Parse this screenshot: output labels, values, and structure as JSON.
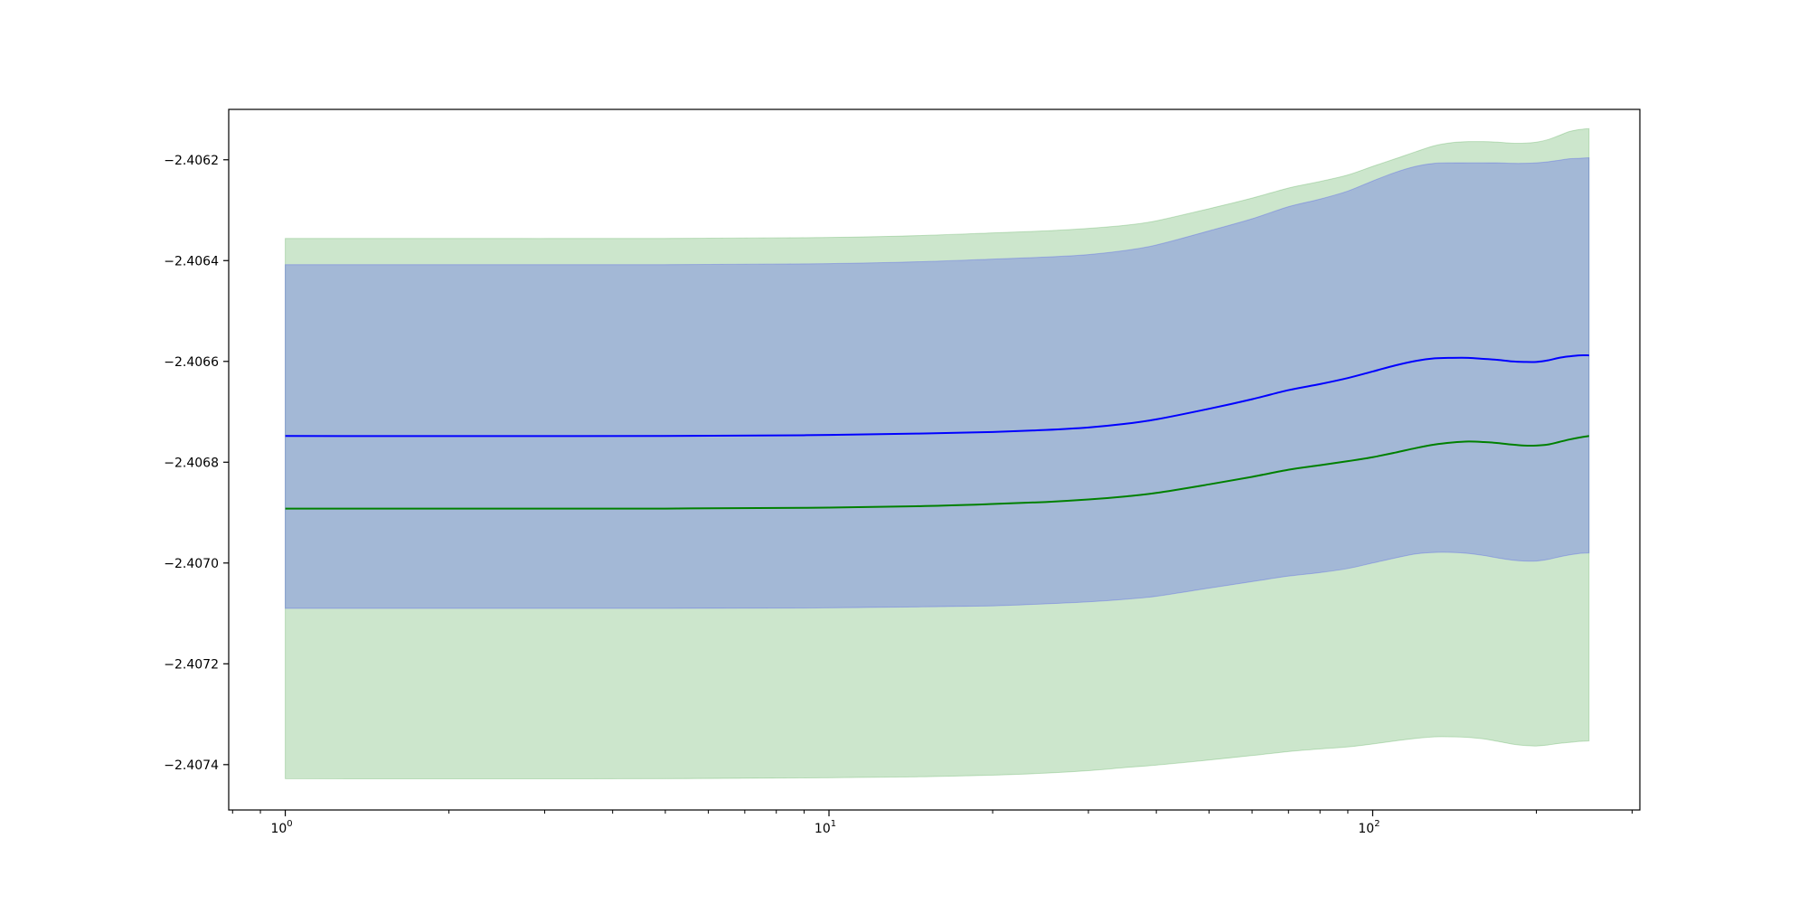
{
  "chart_data": {
    "type": "area",
    "title": "",
    "xlabel": "",
    "ylabel": "",
    "xscale": "log",
    "xlim": [
      0.787,
      310
    ],
    "ylim": [
      -2.40749,
      -2.4061
    ],
    "grid": false,
    "legend": null,
    "x_ticks": [
      {
        "value": 1,
        "base": "10",
        "exp": "0"
      },
      {
        "value": 10,
        "base": "10",
        "exp": "1"
      },
      {
        "value": 100,
        "base": "10",
        "exp": "2"
      }
    ],
    "x_minor_ticks": [
      0.8,
      0.9,
      2,
      3,
      4,
      5,
      6,
      7,
      8,
      9,
      20,
      30,
      40,
      50,
      60,
      70,
      80,
      90,
      200,
      300
    ],
    "y_ticks": [
      {
        "value": -2.4062,
        "label": "−2.4062"
      },
      {
        "value": -2.4064,
        "label": "−2.4064"
      },
      {
        "value": -2.4066,
        "label": "−2.4066"
      },
      {
        "value": -2.4068,
        "label": "−2.4068"
      },
      {
        "value": -2.407,
        "label": "−2.4070"
      },
      {
        "value": -2.4072,
        "label": "−2.4072"
      },
      {
        "value": -2.4074,
        "label": "−2.4074"
      }
    ],
    "series": [
      {
        "color": "#008000",
        "band_color": "#008000",
        "band_opacity": 0.2,
        "x": [
          1,
          5,
          10,
          15,
          20,
          25,
          30,
          35,
          40,
          50,
          60,
          70,
          80,
          90,
          100,
          110,
          120,
          130,
          140,
          150,
          160,
          170,
          180,
          190,
          200,
          210,
          220,
          230,
          240,
          250
        ],
        "y": [
          -2.406892,
          -2.406892,
          -2.40689,
          -2.406887,
          -2.406883,
          -2.406879,
          -2.406874,
          -2.406868,
          -2.406861,
          -2.406844,
          -2.406829,
          -2.406815,
          -2.406806,
          -2.406798,
          -2.40679,
          -2.406781,
          -2.406772,
          -2.406765,
          -2.406761,
          -2.406759,
          -2.40676,
          -2.406762,
          -2.406765,
          -2.406767,
          -2.406767,
          -2.406765,
          -2.40676,
          -2.406755,
          -2.406751,
          -2.406748
        ],
        "lower": [
          -2.407428,
          -2.407428,
          -2.407426,
          -2.407424,
          -2.407421,
          -2.407417,
          -2.407412,
          -2.407406,
          -2.407401,
          -2.407391,
          -2.407382,
          -2.407374,
          -2.407369,
          -2.407365,
          -2.407359,
          -2.407353,
          -2.407348,
          -2.407345,
          -2.407345,
          -2.407346,
          -2.407349,
          -2.407354,
          -2.407359,
          -2.407362,
          -2.407363,
          -2.407361,
          -2.407358,
          -2.407356,
          -2.407354,
          -2.407353
        ],
        "upper": [
          -2.406356,
          -2.406356,
          -2.406354,
          -2.40635,
          -2.406345,
          -2.406341,
          -2.406336,
          -2.40633,
          -2.406321,
          -2.406297,
          -2.406276,
          -2.406256,
          -2.406243,
          -2.40623,
          -2.406213,
          -2.406198,
          -2.406184,
          -2.406172,
          -2.406166,
          -2.406164,
          -2.406164,
          -2.406165,
          -2.406167,
          -2.406167,
          -2.406165,
          -2.40616,
          -2.406152,
          -2.406144,
          -2.40614,
          -2.406138
        ]
      },
      {
        "color": "#0000ff",
        "band_color": "#0000ff",
        "band_opacity": 0.2,
        "x": [
          1,
          5,
          10,
          15,
          20,
          25,
          30,
          35,
          40,
          50,
          60,
          70,
          80,
          90,
          100,
          110,
          120,
          130,
          140,
          150,
          160,
          170,
          180,
          190,
          200,
          210,
          220,
          230,
          240,
          250
        ],
        "y": [
          -2.406748,
          -2.406748,
          -2.406746,
          -2.406743,
          -2.40674,
          -2.406736,
          -2.406731,
          -2.406724,
          -2.406715,
          -2.406694,
          -2.406675,
          -2.406657,
          -2.406645,
          -2.406633,
          -2.40662,
          -2.406608,
          -2.406599,
          -2.406594,
          -2.406593,
          -2.406593,
          -2.406595,
          -2.406597,
          -2.4066,
          -2.406601,
          -2.406601,
          -2.406598,
          -2.406593,
          -2.40659,
          -2.406588,
          -2.406588
        ],
        "lower": [
          -2.40709,
          -2.40709,
          -2.407089,
          -2.407087,
          -2.407085,
          -2.407081,
          -2.407077,
          -2.407072,
          -2.407066,
          -2.40705,
          -2.407037,
          -2.407026,
          -2.407019,
          -2.407011,
          -2.407,
          -2.40699,
          -2.406982,
          -2.406979,
          -2.406979,
          -2.406981,
          -2.406985,
          -2.40699,
          -2.406994,
          -2.406996,
          -2.406996,
          -2.406993,
          -2.406988,
          -2.406984,
          -2.406981,
          -2.40698
        ],
        "upper": [
          -2.406408,
          -2.406408,
          -2.406406,
          -2.406402,
          -2.406397,
          -2.406393,
          -2.406388,
          -2.40638,
          -2.406369,
          -2.406341,
          -2.406317,
          -2.406293,
          -2.406278,
          -2.406262,
          -2.406242,
          -2.406225,
          -2.406213,
          -2.406207,
          -2.406206,
          -2.406206,
          -2.406206,
          -2.406206,
          -2.406207,
          -2.406207,
          -2.406206,
          -2.406204,
          -2.406201,
          -2.406198,
          -2.406197,
          -2.406196
        ]
      }
    ]
  }
}
